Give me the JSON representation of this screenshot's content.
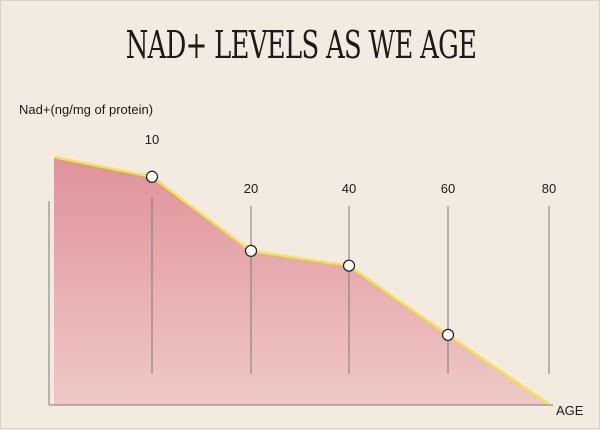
{
  "chart_data": {
    "type": "area",
    "title": "NAD+ LEVELS AS WE AGE",
    "ylabel": "Nad+(ng/mg of protein)",
    "xlabel": "AGE",
    "categories": [
      "",
      "10",
      "20",
      "40",
      "60",
      "80"
    ],
    "values": [
      100,
      92,
      62,
      56,
      28,
      0
    ],
    "marked_points": [
      1,
      2,
      3,
      4
    ],
    "ylim": [
      0,
      100
    ],
    "grid": false,
    "colors": {
      "area_top": "#e0929a",
      "area_bottom": "#efc9c6",
      "line": "#f2e64a",
      "marker_fill": "#ffffff",
      "marker_stroke": "#1a1a1a",
      "axis": "#7a7a7a"
    }
  }
}
